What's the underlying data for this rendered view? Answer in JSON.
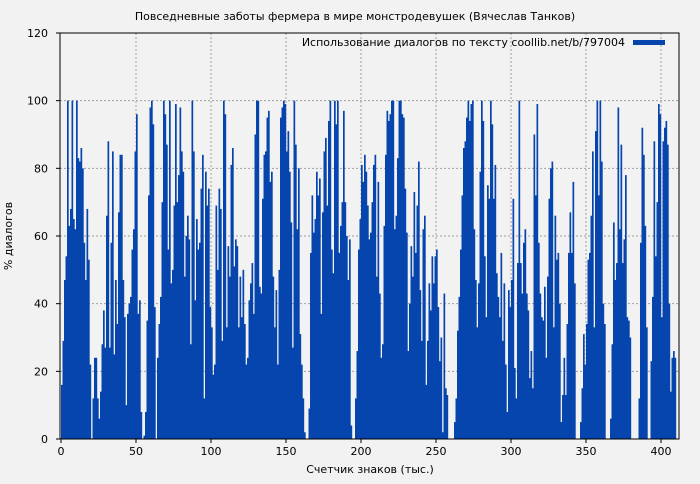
{
  "chart_data": {
    "type": "bar",
    "title": "Повседневные заботы фермера в мире монстродевушек (Вячеслав Танков)",
    "xlabel": "Счетчик знаков (тыс.)",
    "ylabel": "% диалогов",
    "xlim": [
      0,
      412
    ],
    "ylim": [
      0,
      120
    ],
    "xticks": [
      0,
      50,
      100,
      150,
      200,
      250,
      300,
      350,
      400
    ],
    "yticks": [
      0,
      20,
      40,
      60,
      80,
      100,
      120
    ],
    "grid": true,
    "legend": {
      "position": "top-right",
      "label": "Использование диалогов по тексту coollib.net/b/797004"
    },
    "color": "#0645ad",
    "series": [
      {
        "name": "Использование диалогов по тексту coollib.net/b/797004",
        "x_start": 0,
        "x_step": 1,
        "values": [
          16,
          29,
          47,
          54,
          100,
          63,
          68,
          100,
          65,
          62,
          100,
          83,
          82,
          86,
          80,
          58,
          47,
          68,
          53,
          22,
          0,
          12,
          24,
          24,
          12,
          6,
          14,
          28,
          38,
          27,
          66,
          88,
          27,
          58,
          85,
          25,
          47,
          34,
          67,
          84,
          84,
          47,
          36,
          10,
          37,
          40,
          42,
          56,
          62,
          85,
          96,
          37,
          41,
          8,
          0,
          1,
          8,
          35,
          72,
          98,
          100,
          93,
          39,
          0,
          24,
          34,
          42,
          70,
          100,
          96,
          87,
          56,
          100,
          46,
          50,
          69,
          99,
          70,
          78,
          98,
          85,
          79,
          48,
          60,
          66,
          59,
          28,
          100,
          85,
          41,
          65,
          56,
          58,
          74,
          84,
          12,
          79,
          69,
          74,
          39,
          33,
          19,
          22,
          69,
          50,
          74,
          68,
          29,
          100,
          96,
          33,
          57,
          48,
          81,
          86,
          51,
          59,
          57,
          33,
          48,
          36,
          50,
          34,
          22,
          24,
          41,
          46,
          52,
          37,
          90,
          100,
          100,
          45,
          43,
          71,
          84,
          85,
          95,
          97,
          76,
          79,
          48,
          33,
          44,
          22,
          50,
          95,
          98,
          100,
          99,
          85,
          91,
          79,
          64,
          27,
          100,
          87,
          62,
          80,
          31,
          22,
          12,
          2,
          0,
          0,
          9,
          55,
          72,
          61,
          65,
          79,
          72,
          77,
          37,
          67,
          85,
          89,
          69,
          94,
          100,
          56,
          49,
          100,
          93,
          100,
          55,
          63,
          70,
          97,
          70,
          60,
          47,
          59,
          4,
          0,
          0,
          12,
          26,
          56,
          65,
          81,
          76,
          84,
          79,
          69,
          59,
          61,
          70,
          81,
          84,
          48,
          76,
          43,
          24,
          28,
          63,
          84,
          97,
          94,
          96,
          100,
          100,
          62,
          66,
          83,
          100,
          100,
          96,
          95,
          74,
          61,
          26,
          40,
          57,
          48,
          73,
          55,
          69,
          82,
          44,
          29,
          62,
          66,
          16,
          29,
          46,
          38,
          54,
          46,
          54,
          56,
          39,
          23,
          30,
          2,
          43,
          15,
          13,
          0,
          0,
          0,
          0,
          5,
          12,
          32,
          42,
          56,
          72,
          86,
          88,
          95,
          100,
          94,
          99,
          100,
          62,
          47,
          33,
          46,
          79,
          100,
          94,
          54,
          36,
          75,
          71,
          100,
          93,
          71,
          81,
          49,
          42,
          36,
          55,
          29,
          46,
          22,
          8,
          44,
          39,
          47,
          71,
          21,
          12,
          52,
          100,
          52,
          43,
          58,
          62,
          43,
          38,
          18,
          26,
          15,
          90,
          72,
          99,
          58,
          43,
          36,
          35,
          45,
          24,
          48,
          71,
          80,
          82,
          33,
          66,
          53,
          55,
          40,
          5,
          13,
          24,
          13,
          34,
          55,
          67,
          55,
          76,
          46,
          0,
          0,
          0,
          5,
          15,
          31,
          22,
          34,
          53,
          55,
          66,
          85,
          33,
          91,
          100,
          72,
          100,
          82,
          40,
          34,
          0,
          0,
          0,
          6,
          28,
          64,
          47,
          52,
          98,
          62,
          87,
          52,
          59,
          78,
          36,
          35,
          30,
          0,
          0,
          0,
          0,
          0,
          12,
          58,
          92,
          84,
          63,
          33,
          0,
          0,
          23,
          42,
          88,
          54,
          70,
          99,
          96,
          36,
          88,
          92,
          94,
          87,
          40,
          14,
          24,
          26,
          24,
          0
        ]
      }
    ]
  }
}
